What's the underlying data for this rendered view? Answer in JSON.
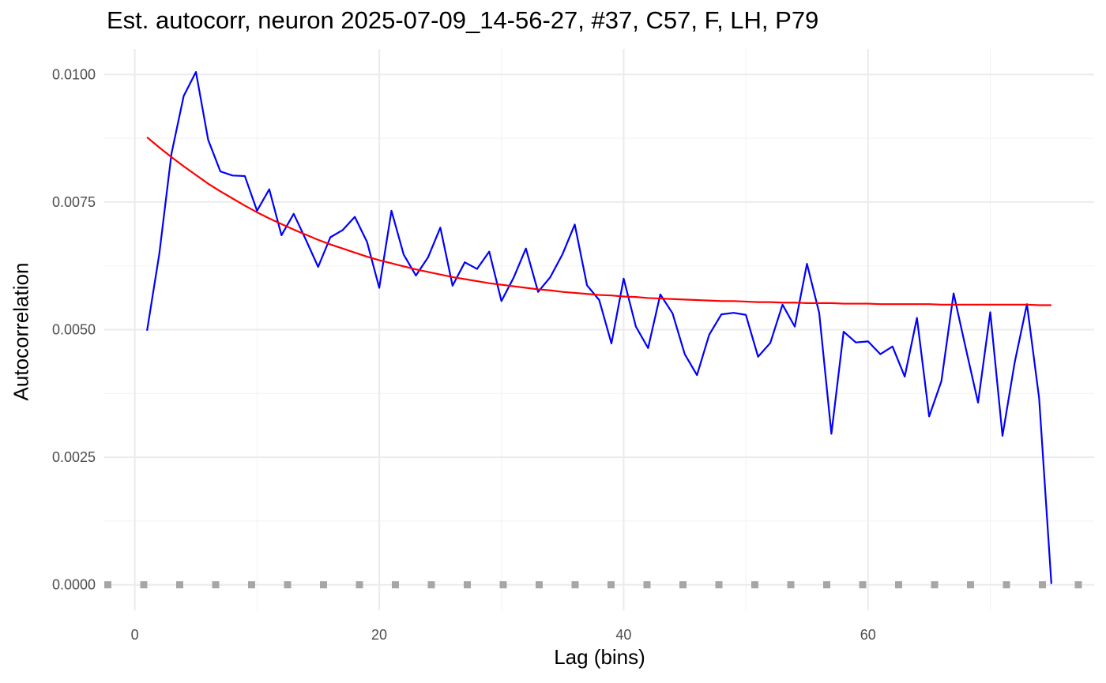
{
  "chart_data": {
    "type": "line",
    "title": "Est. autocorr, neuron 2025-07-09_14-56-27, #37, C57, F, LH, P79",
    "xlabel": "Lag (bins)",
    "ylabel": "Autocorrelation",
    "xlim": [
      -2.5,
      78.5
    ],
    "ylim": [
      -0.0005,
      0.0105
    ],
    "x_ticks": [
      0,
      20,
      40,
      60
    ],
    "x_tick_labels": [
      "0",
      "20",
      "40",
      "60"
    ],
    "y_ticks": [
      0.0,
      0.0025,
      0.005,
      0.0075,
      0.01
    ],
    "y_tick_labels": [
      "0.0000",
      "0.0025",
      "0.0050",
      "0.0075",
      "0.0100"
    ],
    "grid": true,
    "series": [
      {
        "color": "#0000ff",
        "style": "solid",
        "x": [
          1,
          2,
          3,
          4,
          5,
          6,
          7,
          8,
          9,
          10,
          11,
          12,
          13,
          14,
          15,
          16,
          17,
          18,
          19,
          20,
          21,
          22,
          23,
          24,
          25,
          26,
          27,
          28,
          29,
          30,
          31,
          32,
          33,
          34,
          35,
          36,
          37,
          38,
          39,
          40,
          41,
          42,
          43,
          44,
          45,
          46,
          47,
          48,
          49,
          50,
          51,
          52,
          53,
          54,
          55,
          56,
          57,
          58,
          59,
          60,
          61,
          62,
          63,
          64,
          65,
          66,
          67,
          68,
          69,
          70,
          71,
          72,
          73,
          74,
          75
        ],
        "y": [
          0.00498,
          0.00648,
          0.00845,
          0.00958,
          0.01005,
          0.00872,
          0.0081,
          0.00802,
          0.00801,
          0.00733,
          0.00775,
          0.00685,
          0.00727,
          0.00676,
          0.00623,
          0.00681,
          0.00695,
          0.00721,
          0.00672,
          0.00582,
          0.00733,
          0.00647,
          0.00606,
          0.00642,
          0.007,
          0.00586,
          0.00632,
          0.00619,
          0.00653,
          0.00556,
          0.00602,
          0.00659,
          0.00574,
          0.00603,
          0.00648,
          0.00706,
          0.00587,
          0.00558,
          0.00473,
          0.006,
          0.00506,
          0.00464,
          0.00569,
          0.00532,
          0.00452,
          0.00411,
          0.0049,
          0.0053,
          0.00533,
          0.00529,
          0.00447,
          0.00474,
          0.00549,
          0.00506,
          0.00629,
          0.00533,
          0.00296,
          0.00496,
          0.00475,
          0.00477,
          0.00452,
          0.00467,
          0.00408,
          0.00523,
          0.0033,
          0.00399,
          0.00571,
          0.00463,
          0.00357,
          0.00534,
          0.00292,
          0.00436,
          0.0055,
          0.00365,
          2e-05
        ]
      },
      {
        "color": "#ff0000",
        "style": "solid",
        "x": [
          1,
          2,
          3,
          4,
          5,
          6,
          7,
          8,
          9,
          10,
          11,
          12,
          13,
          14,
          15,
          16,
          17,
          18,
          19,
          20,
          21,
          22,
          23,
          24,
          25,
          26,
          27,
          28,
          29,
          30,
          31,
          32,
          33,
          34,
          35,
          36,
          37,
          38,
          39,
          40,
          41,
          42,
          43,
          44,
          45,
          46,
          47,
          48,
          49,
          50,
          51,
          52,
          53,
          54,
          55,
          56,
          57,
          58,
          59,
          60,
          61,
          62,
          63,
          64,
          65,
          66,
          67,
          68,
          69,
          70,
          71,
          72,
          73,
          74,
          75
        ],
        "y": [
          0.00877,
          0.00857,
          0.00838,
          0.0082,
          0.00803,
          0.00786,
          0.00771,
          0.00757,
          0.00743,
          0.0073,
          0.00718,
          0.00707,
          0.00696,
          0.00686,
          0.00676,
          0.00667,
          0.00659,
          0.00651,
          0.00643,
          0.00636,
          0.0063,
          0.00624,
          0.00618,
          0.00613,
          0.00608,
          0.00603,
          0.00599,
          0.00595,
          0.00591,
          0.00588,
          0.00585,
          0.00582,
          0.00579,
          0.00577,
          0.00574,
          0.00572,
          0.0057,
          0.00568,
          0.00567,
          0.00565,
          0.00564,
          0.00562,
          0.00561,
          0.0056,
          0.00559,
          0.00558,
          0.00557,
          0.00556,
          0.00556,
          0.00555,
          0.00554,
          0.00554,
          0.00553,
          0.00553,
          0.00552,
          0.00552,
          0.00552,
          0.00551,
          0.00551,
          0.00551,
          0.0055,
          0.0055,
          0.0055,
          0.0055,
          0.0055,
          0.00549,
          0.00549,
          0.00549,
          0.00549,
          0.00549,
          0.00549,
          0.00549,
          0.00549,
          0.00548,
          0.00548
        ]
      },
      {
        "color": "#a6a6a6",
        "style": "dotted",
        "x": [
          -2.5,
          78.5
        ],
        "y": [
          0.0,
          0.0
        ]
      }
    ]
  }
}
